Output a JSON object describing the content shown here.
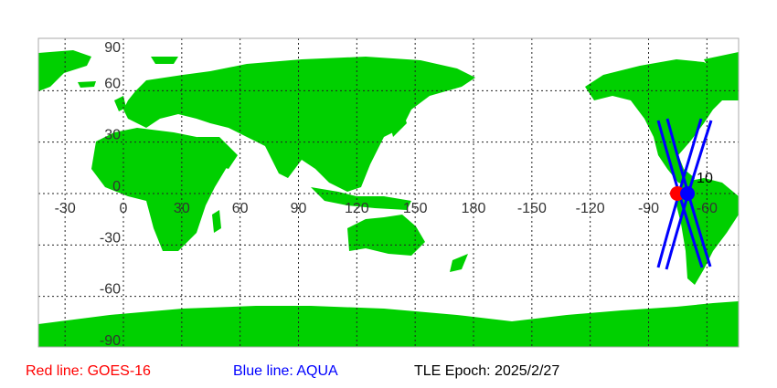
{
  "map": {
    "lon_labels": [
      "-30",
      "0",
      "30",
      "60",
      "90",
      "120",
      "150",
      "180",
      "-150",
      "-120",
      "-90",
      "-60"
    ],
    "lat_labels": [
      "90",
      "60",
      "30",
      "0",
      "-30",
      "-60",
      "-90"
    ],
    "land_color": "#00d000",
    "grid": true,
    "satellites": [
      {
        "name": "GOES-16",
        "color": "#ff0000",
        "lon": -75.2,
        "lat": 0
      },
      {
        "name": "AQUA",
        "color": "#0000ff",
        "lon": -70,
        "lat": 0,
        "label": "10"
      }
    ]
  },
  "legend": {
    "red": "Red line: GOES-16",
    "blue": "Blue line: AQUA",
    "epoch": "TLE Epoch: 2025/2/27"
  }
}
